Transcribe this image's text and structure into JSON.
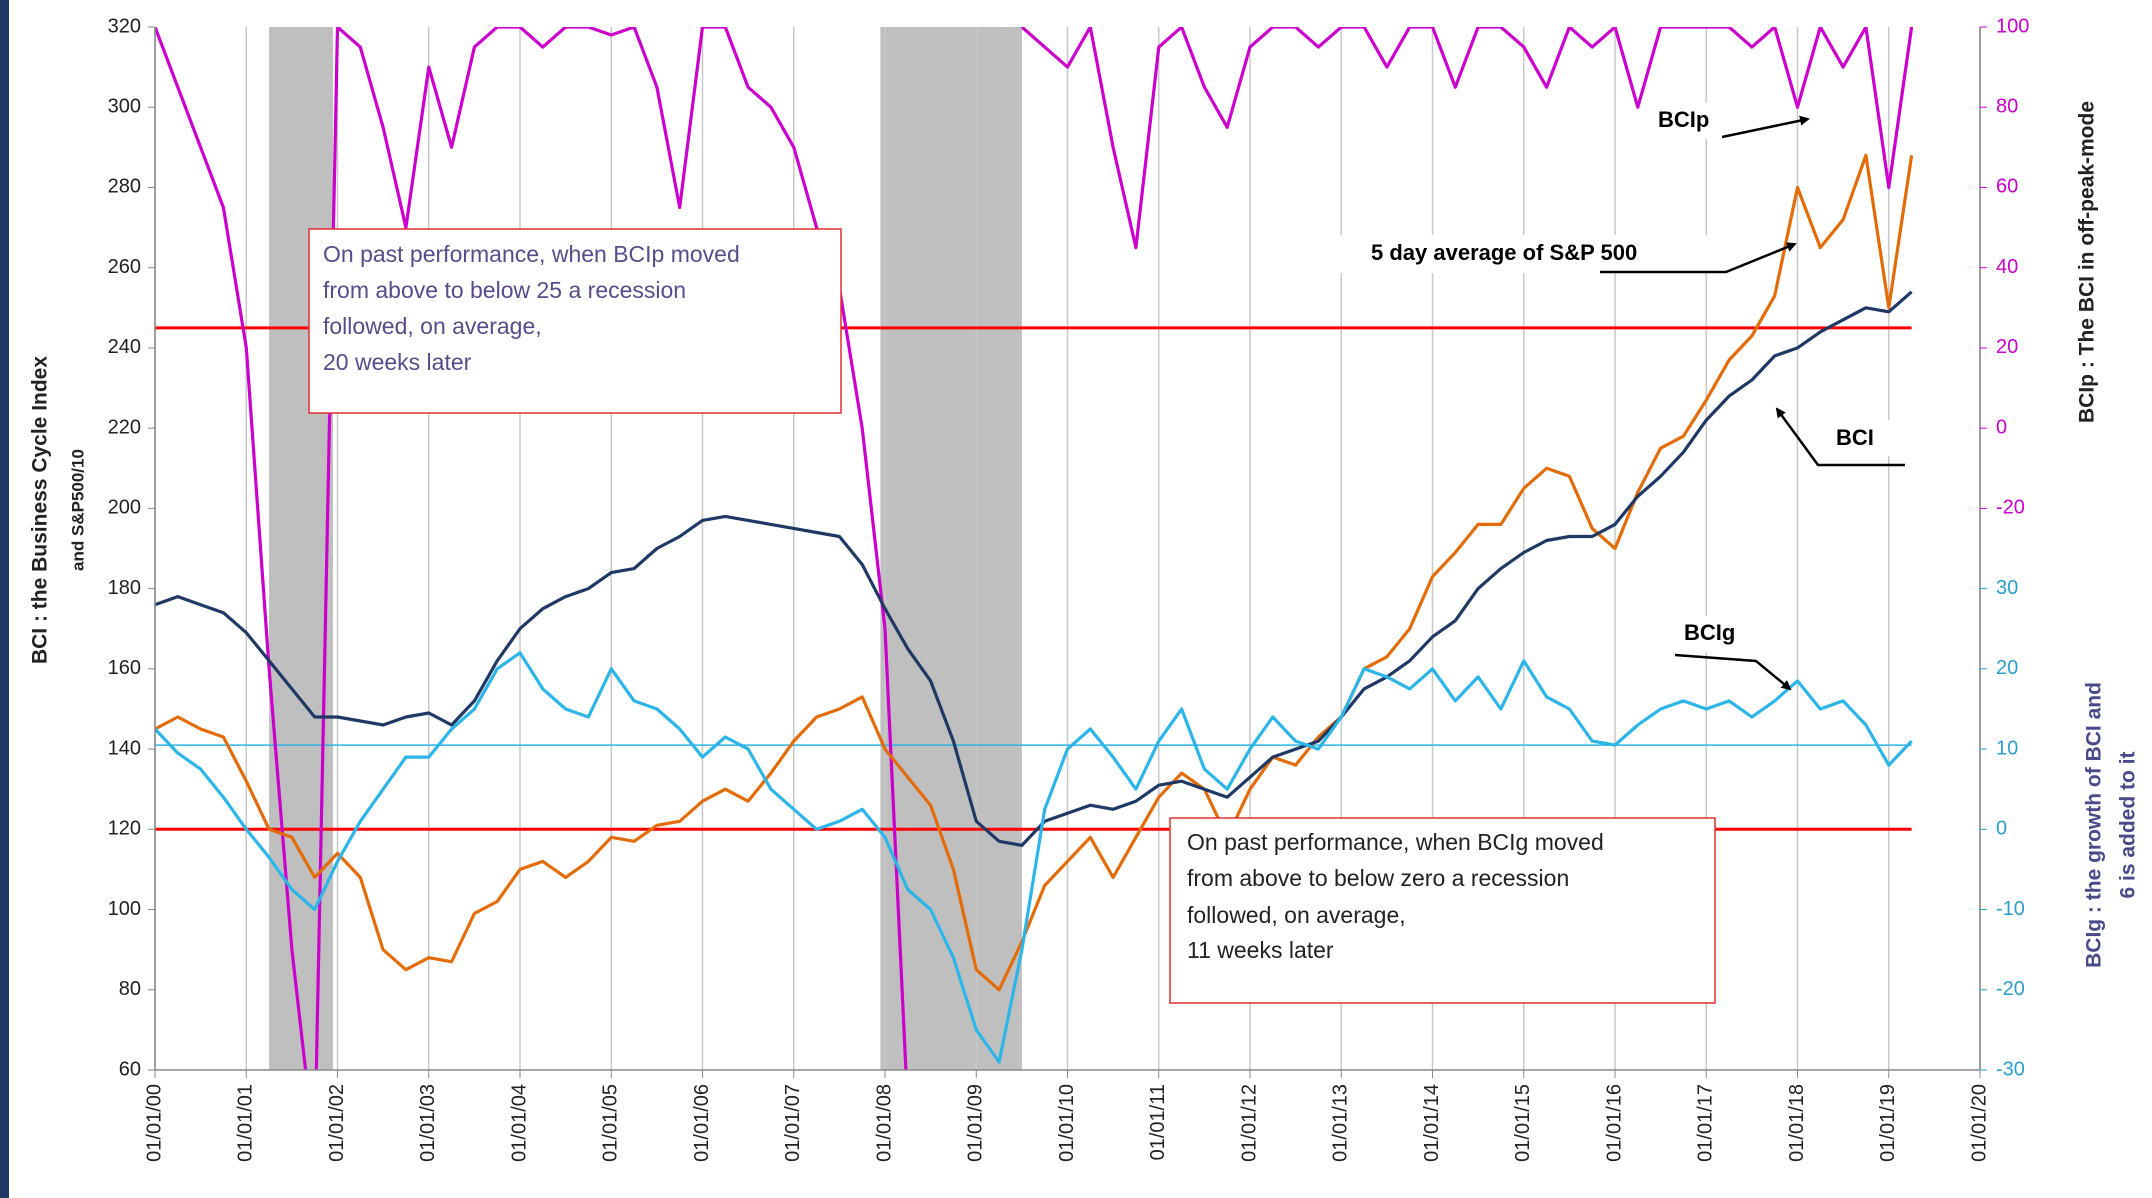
{
  "chart_data": {
    "type": "line",
    "ylabel": [
      "BCI : the Business  Cycle Index",
      "and  S&P500/10"
    ],
    "y2label": "BCIp :  The BCI in off-peak-mode",
    "y3label": [
      "BCIg :  the growth of BCI and",
      "6 is added to it"
    ],
    "x": [
      2000,
      2000.25,
      2000.5,
      2000.75,
      2001,
      2001.25,
      2001.5,
      2001.75,
      2002,
      2002.25,
      2002.5,
      2002.75,
      2003,
      2003.25,
      2003.5,
      2003.75,
      2004,
      2004.25,
      2004.5,
      2004.75,
      2005,
      2005.25,
      2005.5,
      2005.75,
      2006,
      2006.25,
      2006.5,
      2006.75,
      2007,
      2007.25,
      2007.5,
      2007.75,
      2008,
      2008.25,
      2008.5,
      2008.75,
      2009,
      2009.25,
      2009.5,
      2009.75,
      2010,
      2010.25,
      2010.5,
      2010.75,
      2011,
      2011.25,
      2011.5,
      2011.75,
      2012,
      2012.25,
      2012.5,
      2012.75,
      2013,
      2013.25,
      2013.5,
      2013.75,
      2014,
      2014.25,
      2014.5,
      2014.75,
      2015,
      2015.25,
      2015.5,
      2015.75,
      2016,
      2016.25,
      2016.5,
      2016.75,
      2017,
      2017.25,
      2017.5,
      2017.75,
      2018,
      2018.25,
      2018.5,
      2018.75,
      2019,
      2019.25
    ],
    "xlim": [
      2000,
      2020
    ],
    "xticks": [
      {
        "value": 2000,
        "label": "01/01/00"
      },
      {
        "value": 2001,
        "label": "01/01/01"
      },
      {
        "value": 2002,
        "label": "01/01/02"
      },
      {
        "value": 2003,
        "label": "01/01/03"
      },
      {
        "value": 2004,
        "label": "01/01/04"
      },
      {
        "value": 2005,
        "label": "01/01/05"
      },
      {
        "value": 2006,
        "label": "01/01/06"
      },
      {
        "value": 2007,
        "label": "01/01/07"
      },
      {
        "value": 2008,
        "label": "01/01/08"
      },
      {
        "value": 2009,
        "label": "01/01/09"
      },
      {
        "value": 2010,
        "label": "01/01/10"
      },
      {
        "value": 2011,
        "label": "01/01/11"
      },
      {
        "value": 2012,
        "label": "01/01/12"
      },
      {
        "value": 2013,
        "label": "01/01/13"
      },
      {
        "value": 2014,
        "label": "01/01/14"
      },
      {
        "value": 2015,
        "label": "01/01/15"
      },
      {
        "value": 2016,
        "label": "01/01/16"
      },
      {
        "value": 2017,
        "label": "01/01/17"
      },
      {
        "value": 2018,
        "label": "01/01/18"
      },
      {
        "value": 2019,
        "label": "01/01/19"
      },
      {
        "value": 2020,
        "label": "01/01/20"
      }
    ],
    "ylim": [
      60,
      320
    ],
    "yticks": [
      60,
      80,
      100,
      120,
      140,
      160,
      180,
      200,
      220,
      240,
      260,
      280,
      300,
      320
    ],
    "y2lim": [
      -160,
      100
    ],
    "y2ticks": [
      -20,
      0,
      20,
      40,
      60,
      80,
      100
    ],
    "y2color": "#cc00cc",
    "y3lim": [
      -30,
      100
    ],
    "y3ticks": [
      -30,
      -20,
      -10,
      0,
      10,
      20,
      30
    ],
    "y3color": "#2a9fcf",
    "grid": "x",
    "shaded_periods": [
      [
        2001.25,
        2001.95
      ],
      [
        2007.95,
        2009.5
      ]
    ],
    "shade_color": "#bfbfbf",
    "reference_lines": [
      {
        "axis": "y2",
        "value": 25,
        "color": "#ff0000"
      },
      {
        "axis": "y3",
        "value": 0,
        "color": "#ff0000"
      },
      {
        "axis": "y3",
        "value": 10.5,
        "color": "#2cb5e8"
      }
    ],
    "series": [
      {
        "name": "BCIp",
        "axis": "y2",
        "color": "#cc00cc",
        "values": [
          100,
          85,
          70,
          55,
          20,
          -60,
          -130,
          -180,
          100,
          95,
          75,
          50,
          90,
          70,
          95,
          100,
          100,
          95,
          100,
          100,
          98,
          100,
          85,
          55,
          100,
          100,
          85,
          80,
          70,
          50,
          35,
          0,
          -50,
          -170,
          null,
          null,
          null,
          null,
          100,
          95,
          90,
          100,
          70,
          45,
          95,
          100,
          85,
          75,
          95,
          100,
          100,
          95,
          100,
          100,
          90,
          100,
          100,
          85,
          100,
          100,
          95,
          85,
          100,
          95,
          100,
          80,
          100,
          100,
          100,
          100,
          95,
          100,
          80,
          100,
          90,
          100,
          60,
          100
        ]
      },
      {
        "name": "5 day average of S&P 500",
        "axis": "y",
        "color": "#e36c09",
        "values": [
          145,
          148,
          145,
          143,
          132,
          120,
          118,
          108,
          114,
          108,
          90,
          85,
          88,
          87,
          99,
          102,
          110,
          112,
          108,
          112,
          118,
          117,
          121,
          122,
          127,
          130,
          127,
          134,
          142,
          148,
          150,
          153,
          140,
          133,
          126,
          110,
          85,
          80,
          92,
          106,
          112,
          118,
          108,
          118,
          128,
          134,
          130,
          118,
          130,
          138,
          136,
          143,
          148,
          160,
          163,
          170,
          183,
          189,
          196,
          196,
          205,
          210,
          208,
          195,
          190,
          204,
          215,
          218,
          227,
          237,
          243,
          253,
          280,
          265,
          272,
          288,
          250,
          288
        ]
      },
      {
        "name": "BCI",
        "axis": "y",
        "color": "#1f3864",
        "values": [
          176,
          178,
          176,
          174,
          169,
          162,
          155,
          148,
          148,
          147,
          146,
          148,
          149,
          146,
          152,
          162,
          170,
          175,
          178,
          180,
          184,
          185,
          190,
          193,
          197,
          198,
          197,
          196,
          195,
          194,
          193,
          186,
          175,
          165,
          157,
          142,
          122,
          117,
          116,
          122,
          124,
          126,
          125,
          127,
          131,
          132,
          130,
          128,
          133,
          138,
          140,
          142,
          148,
          155,
          158,
          162,
          168,
          172,
          180,
          185,
          189,
          192,
          193,
          193,
          196,
          203,
          208,
          214,
          222,
          228,
          232,
          238,
          240,
          244,
          247,
          250,
          249,
          254
        ]
      },
      {
        "name": "BCIg",
        "axis": "y3",
        "color": "#2cb5e8",
        "values": [
          12.5,
          9.5,
          7.5,
          4,
          0,
          -3.5,
          -7.5,
          -10,
          -4,
          1,
          5,
          9,
          9,
          12.5,
          15,
          20,
          22,
          17.5,
          15,
          14,
          20,
          16,
          15,
          12.5,
          9,
          11.5,
          10,
          5,
          2.5,
          0,
          1,
          2.5,
          -1,
          -7.5,
          -10,
          -16,
          -25,
          -29,
          -15,
          2.5,
          10,
          12.5,
          9,
          5,
          11,
          15,
          7.5,
          5,
          10,
          14,
          11,
          10,
          14,
          20,
          19,
          17.5,
          20,
          16,
          19,
          15,
          21,
          16.5,
          15,
          11,
          10.5,
          13,
          15,
          16,
          15,
          16,
          14,
          16,
          18.5,
          15,
          16,
          13,
          8,
          11
        ]
      }
    ],
    "annotations": {
      "box1": [
        "On past performance,  when BCIp moved",
        "from above to below 25 a recession",
        "followed, on average,",
        "20 weeks later"
      ],
      "box2": [
        "On past performance,  when BCIg moved",
        "from above to below zero a recession",
        "followed, on average,",
        "11 weeks later"
      ]
    }
  }
}
